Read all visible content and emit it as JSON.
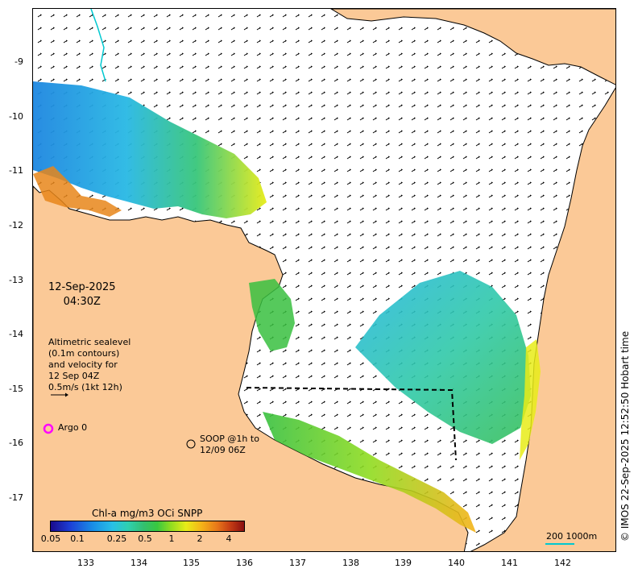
{
  "date": "12-Sep-2025",
  "time": "04:30Z",
  "legend": {
    "altimetry_lines": [
      "Altimetric sealevel",
      "(0.1m contours)",
      "and velocity for",
      "12 Sep 04Z",
      "0.5m/s (1kt 12h)"
    ],
    "argo": "Argo 0",
    "soop_lines": [
      "SOOP @1h to",
      "12/09 06Z"
    ]
  },
  "colorbar": {
    "title": "Chl-a mg/m3 OCi SNPP",
    "ticks": [
      "0.05",
      "0.1",
      "0.25",
      "0.5",
      "1",
      "2",
      "4"
    ]
  },
  "scale_bar": {
    "label_left": "200",
    "label_right": "1000m"
  },
  "credit": "© IMOS 22-Sep-2025 12:52:50 Hobart time",
  "axes": {
    "x_ticks": [
      "133",
      "134",
      "135",
      "136",
      "137",
      "138",
      "139",
      "140",
      "141",
      "142"
    ],
    "y_ticks": [
      "-9",
      "-10",
      "-11",
      "-12",
      "-13",
      "-14",
      "-15",
      "-16",
      "-17"
    ]
  },
  "colors": {
    "land": "#fbc997",
    "sea": "#ffffff",
    "argo_marker": "#ff00ff",
    "river": "#00c8d0"
  }
}
